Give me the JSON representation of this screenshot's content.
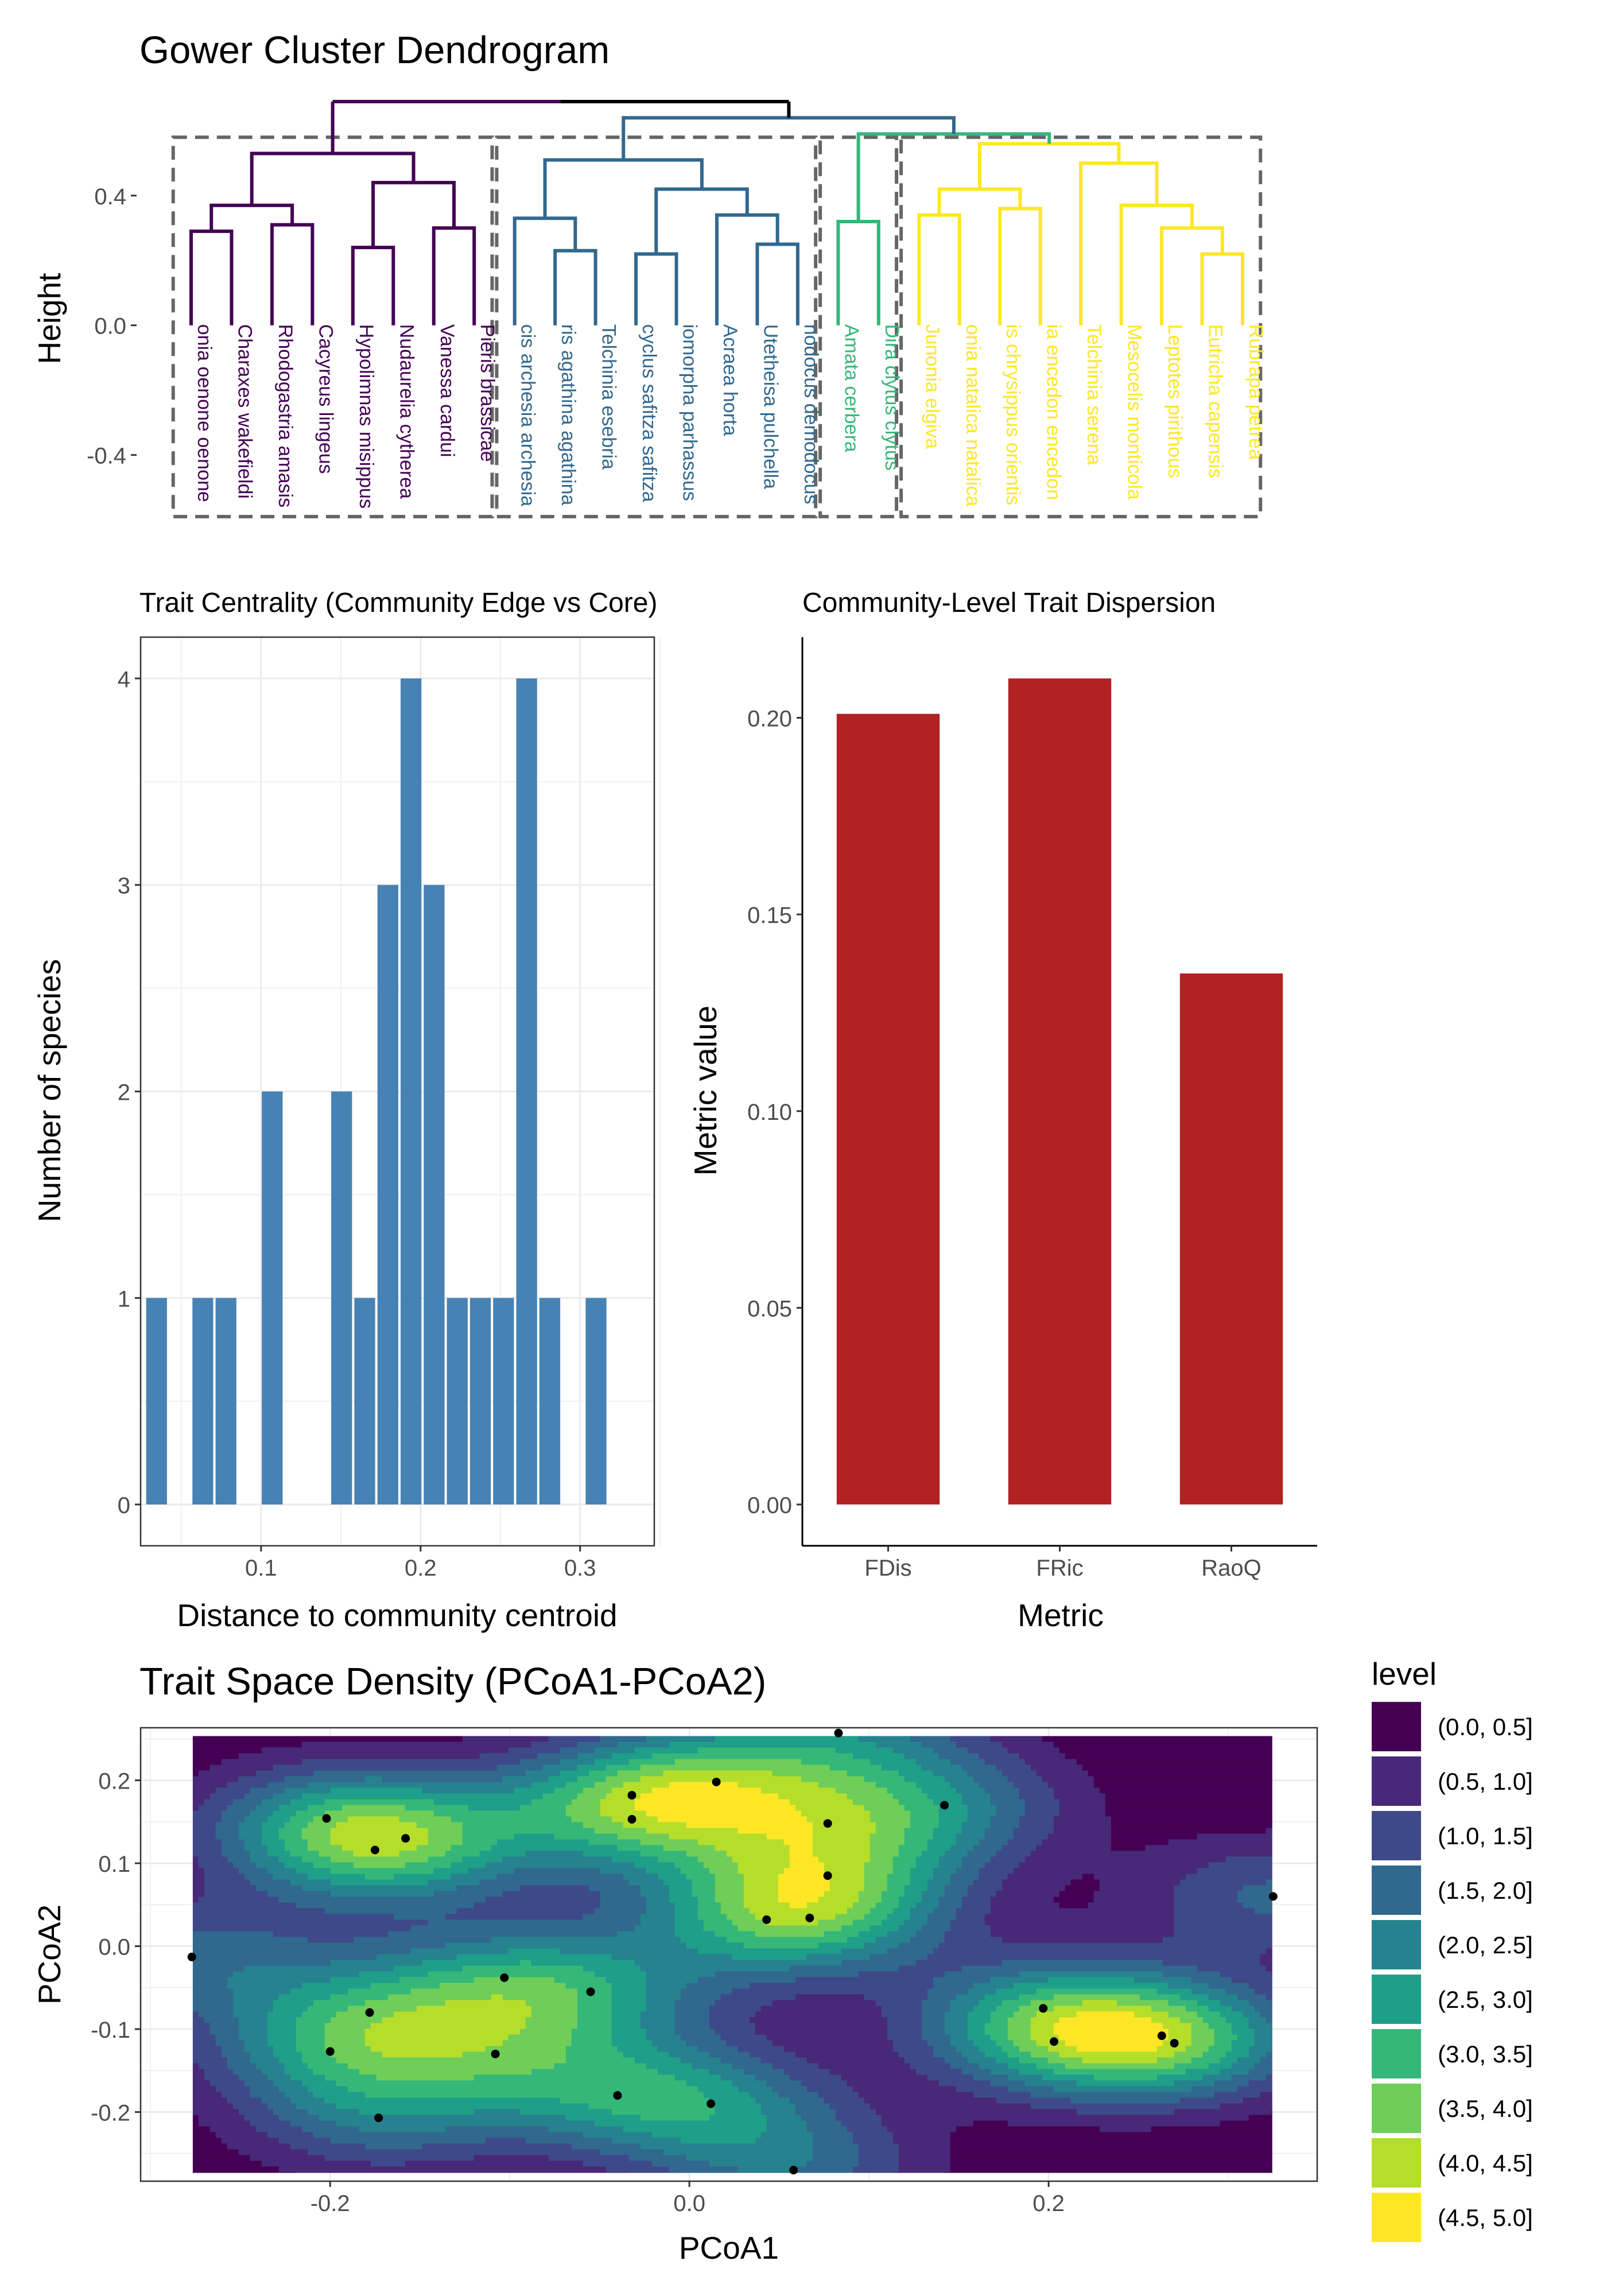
{
  "chart_data": [
    {
      "type": "dendrogram",
      "title": "Gower Cluster Dendrogram",
      "ylabel": "Height",
      "y_ticks": [
        0.4,
        0.0,
        -0.4
      ],
      "y_tick_labels": [
        "0.4",
        "0.0",
        "-0.4"
      ],
      "ylim": [
        -0.59,
        0.72
      ],
      "groups": [
        {
          "color": "#440154",
          "leaves": [
            "Alaena oenone oenone",
            "Charaxes wakefieldi",
            "Rhodogastria amasis",
            "Cacyreus lingeus",
            "Hypolimnas misippus",
            "Nudaurelia cytherea",
            "Vanessa cardui",
            "Pieris brassicae"
          ]
        },
        {
          "color": "#31688e",
          "leaves": [
            "Acraeis archesia archesia",
            "Acraeis agathina agathina",
            "Telchinia esebria",
            "Cyclyrius safitza safitza",
            "Phalanta eurymorpha parhassus",
            "Acraea horta",
            "Utetheisa pulchella",
            "Tarucus sybaris demodocus"
          ]
        },
        {
          "color": "#35b779",
          "leaves": [
            "Amata cerbera",
            "Dira clytus clytus"
          ]
        },
        {
          "color": "#fde725",
          "leaves": [
            "Junonia elgiva",
            "Euphaedra natalica natalica",
            "Papilio chrysippus orientis",
            "Leptotes encedon encedon",
            "Telchinia serena",
            "Mesocelis monticola",
            "Leptotes pirithous",
            "Eutricha capensis",
            "Rubrapa petrea"
          ]
        }
      ],
      "leaf_display": [
        "onia oenone oenone",
        "Charaxes wakefieldi",
        "Rhodogastria amasis",
        "Cacyreus lingeus",
        "Hypolimnas misippus",
        "Nudaurelia cytherea",
        "Vanessa cardui",
        "Pieris brassicae",
        "cis archesia archesia",
        "ris agathina agathina",
        "Telchinia esebria",
        "cyclus safitza safitza",
        "iomorpha parhassus",
        "Acraea horta",
        "Utetheisa pulchella",
        "nodocus demodocus",
        "Amata cerbera",
        "Dira clytus clytus",
        "Junonia elgiva",
        "onia natalica natalica",
        "is chrysippus orientis",
        "ia encedon encedon",
        "Telchinia serena",
        "Mesocelis monticola",
        "Leptotes pirithous",
        "Eutricha capensis",
        "Rubrapa petrea"
      ],
      "merges": [
        {
          "color": "#440154",
          "x1": 0,
          "x2": 1,
          "h": 0.29,
          "bottom1": 0.0,
          "bottom2": 0.0
        },
        {
          "color": "#440154",
          "x1": 2,
          "x2": 3,
          "h": 0.31,
          "bottom1": 0.0,
          "bottom2": 0.0
        },
        {
          "color": "#440154",
          "x1": 0.5,
          "x2": 2.5,
          "h": 0.37,
          "bottom1": 0.29,
          "bottom2": 0.31
        },
        {
          "color": "#440154",
          "x1": 4,
          "x2": 5,
          "h": 0.24,
          "bottom1": 0.0,
          "bottom2": 0.0
        },
        {
          "color": "#440154",
          "x1": 6,
          "x2": 7,
          "h": 0.3,
          "bottom1": 0.0,
          "bottom2": 0.0
        },
        {
          "color": "#440154",
          "x1": 4.5,
          "x2": 6.5,
          "h": 0.44,
          "bottom1": 0.24,
          "bottom2": 0.3
        },
        {
          "color": "#440154",
          "x1": 1.5,
          "x2": 5.5,
          "h": 0.53,
          "bottom1": 0.37,
          "bottom2": 0.44
        },
        {
          "color": "#31688e",
          "x1": 9,
          "x2": 10,
          "h": 0.23,
          "bottom1": 0.0,
          "bottom2": 0.0
        },
        {
          "color": "#31688e",
          "x1": 8,
          "x2": 9.5,
          "h": 0.33,
          "bottom1": 0.0,
          "bottom2": 0.23
        },
        {
          "color": "#31688e",
          "x1": 11,
          "x2": 12,
          "h": 0.22,
          "bottom1": 0.0,
          "bottom2": 0.0
        },
        {
          "color": "#31688e",
          "x1": 14,
          "x2": 15,
          "h": 0.25,
          "bottom1": 0.0,
          "bottom2": 0.0
        },
        {
          "color": "#31688e",
          "x1": 13,
          "x2": 14.5,
          "h": 0.34,
          "bottom1": 0.0,
          "bottom2": 0.25
        },
        {
          "color": "#31688e",
          "x1": 11.5,
          "x2": 13.75,
          "h": 0.42,
          "bottom1": 0.22,
          "bottom2": 0.34
        },
        {
          "color": "#31688e",
          "x1": 8.75,
          "x2": 12.63,
          "h": 0.51,
          "bottom1": 0.33,
          "bottom2": 0.42
        },
        {
          "color": "#35b779",
          "x1": 16,
          "x2": 17,
          "h": 0.32,
          "bottom1": 0.0,
          "bottom2": 0.0
        },
        {
          "color": "#fde725",
          "x1": 18,
          "x2": 19,
          "h": 0.34,
          "bottom1": 0.0,
          "bottom2": 0.0
        },
        {
          "color": "#fde725",
          "x1": 20,
          "x2": 21,
          "h": 0.36,
          "bottom1": 0.0,
          "bottom2": 0.0
        },
        {
          "color": "#fde725",
          "x1": 18.5,
          "x2": 20.5,
          "h": 0.42,
          "bottom1": 0.34,
          "bottom2": 0.36
        },
        {
          "color": "#fde725",
          "x1": 25,
          "x2": 26,
          "h": 0.22,
          "bottom1": 0.0,
          "bottom2": 0.0
        },
        {
          "color": "#fde725",
          "x1": 24,
          "x2": 25.5,
          "h": 0.3,
          "bottom1": 0.0,
          "bottom2": 0.22
        },
        {
          "color": "#fde725",
          "x1": 23,
          "x2": 24.75,
          "h": 0.37,
          "bottom1": 0.0,
          "bottom2": 0.3
        },
        {
          "color": "#fde725",
          "x1": 22,
          "x2": 23.88,
          "h": 0.5,
          "bottom1": 0.0,
          "bottom2": 0.37
        },
        {
          "color": "#fde725",
          "x1": 19.5,
          "x2": 22.94,
          "h": 0.56,
          "bottom1": 0.42,
          "bottom2": 0.5
        },
        {
          "color": "#35b779",
          "x1": 16.5,
          "x2": 21.22,
          "h": 0.59,
          "bottom1": 0.32,
          "bottom2": 0.56
        },
        {
          "color": "#31688e",
          "x1": 10.69,
          "x2": 18.86,
          "h": 0.64,
          "bottom1": 0.51,
          "bottom2": 0.59
        },
        {
          "color": "#000000",
          "x1": 3.5,
          "x2": 14.78,
          "h": 0.69,
          "bottom1": 0.53,
          "bottom2": 0.64
        }
      ],
      "root_split_color": "#440154",
      "boxes": [
        [
          0,
          7
        ],
        [
          8,
          15
        ],
        [
          16,
          17
        ],
        [
          18,
          26
        ]
      ],
      "box_ymin": -0.59,
      "box_ymax": 0.58
    },
    {
      "type": "bar",
      "title": "Trait Centrality (Community Edge vs Core)",
      "xlabel": "Distance to community centroid",
      "ylabel": "Number of species",
      "bin_width": 0.0145,
      "x": [
        0.0345,
        0.0635,
        0.078,
        0.107,
        0.1505,
        0.165,
        0.1795,
        0.194,
        0.2085,
        0.223,
        0.2375,
        0.252,
        0.2665,
        0.281,
        0.31
      ],
      "values": [
        1,
        1,
        1,
        2,
        2,
        1,
        3,
        4,
        3,
        1,
        1,
        1,
        4,
        1,
        1
      ],
      "xlim": [
        0.0245,
        0.3465
      ],
      "ylim": [
        -0.2,
        4.2
      ],
      "x_ticks": [
        0.1,
        0.2,
        0.3
      ],
      "x_tick_labels": [
        "0.1",
        "0.2",
        "0.3"
      ],
      "y_ticks": [
        0,
        1,
        2,
        3,
        4
      ],
      "y_tick_labels": [
        "0",
        "1",
        "2",
        "3",
        "4"
      ],
      "color": "#4682b4",
      "grid": true
    },
    {
      "type": "bar",
      "title": "Community-Level Trait Dispersion",
      "xlabel": "Metric",
      "ylabel": "Metric value",
      "categories": [
        "FDis",
        "FRic",
        "RaoQ"
      ],
      "values": [
        0.201,
        0.21,
        0.135
      ],
      "ylim": [
        -0.0105,
        0.2205
      ],
      "y_ticks": [
        0.0,
        0.05,
        0.1,
        0.15,
        0.2
      ],
      "y_tick_labels": [
        "0.00",
        "0.05",
        "0.10",
        "0.15",
        "0.20"
      ],
      "color": "#b22222",
      "grid": false
    },
    {
      "type": "heatmap",
      "title": "Trait Space Density (PCoA1-PCoA2)",
      "xlabel": "PCoA1",
      "ylabel": "PCoA2",
      "xlim": [
        -0.3055,
        0.3495
      ],
      "ylim": [
        -0.2834,
        0.2634
      ],
      "x_ticks": [
        -0.2,
        0.0,
        0.2
      ],
      "x_tick_labels": [
        "-0.2",
        "0.0",
        "0.2"
      ],
      "y_ticks": [
        0.2,
        0.1,
        0.0,
        -0.1,
        -0.2
      ],
      "y_tick_labels": [
        "0.2",
        "0.1",
        "0.0",
        "-0.1",
        "-0.2"
      ],
      "density_extent": {
        "x": [
          -0.2765,
          0.3245
        ],
        "y": [
          -0.2734,
          0.2534
        ]
      },
      "legend_title": "level",
      "legend_placement": "right",
      "levels": [
        {
          "label": "(0.0, 0.5]",
          "color": "#440154"
        },
        {
          "label": "(0.5, 1.0]",
          "color": "#482878"
        },
        {
          "label": "(1.0, 1.5]",
          "color": "#3e4989"
        },
        {
          "label": "(1.5, 2.0]",
          "color": "#31688e"
        },
        {
          "label": "(2.0, 2.5]",
          "color": "#26828e"
        },
        {
          "label": "(2.5, 3.0]",
          "color": "#1f9e89"
        },
        {
          "label": "(3.0, 3.5]",
          "color": "#35b779"
        },
        {
          "label": "(3.5, 4.0]",
          "color": "#6ece58"
        },
        {
          "label": "(4.0, 4.5]",
          "color": "#b5de2b"
        },
        {
          "label": "(4.5, 5.0]",
          "color": "#fde725"
        }
      ],
      "points": [
        [
          -0.277,
          -0.013
        ],
        [
          -0.202,
          0.154
        ],
        [
          -0.175,
          0.116
        ],
        [
          -0.158,
          0.13
        ],
        [
          -0.178,
          -0.08
        ],
        [
          -0.2,
          -0.127
        ],
        [
          -0.173,
          -0.207
        ],
        [
          -0.108,
          -0.13
        ],
        [
          -0.103,
          -0.038
        ],
        [
          -0.055,
          -0.055
        ],
        [
          -0.04,
          -0.18
        ],
        [
          -0.032,
          0.182
        ],
        [
          -0.032,
          0.153
        ],
        [
          0.015,
          0.198
        ],
        [
          0.012,
          -0.19
        ],
        [
          0.043,
          0.032
        ],
        [
          0.067,
          0.034
        ],
        [
          0.077,
          0.148
        ],
        [
          0.077,
          0.085
        ],
        [
          0.083,
          0.257
        ],
        [
          0.142,
          0.17
        ],
        [
          0.058,
          -0.27
        ],
        [
          0.197,
          -0.075
        ],
        [
          0.203,
          -0.115
        ],
        [
          0.263,
          -0.108
        ],
        [
          0.27,
          -0.117
        ],
        [
          0.325,
          0.06
        ]
      ]
    }
  ]
}
